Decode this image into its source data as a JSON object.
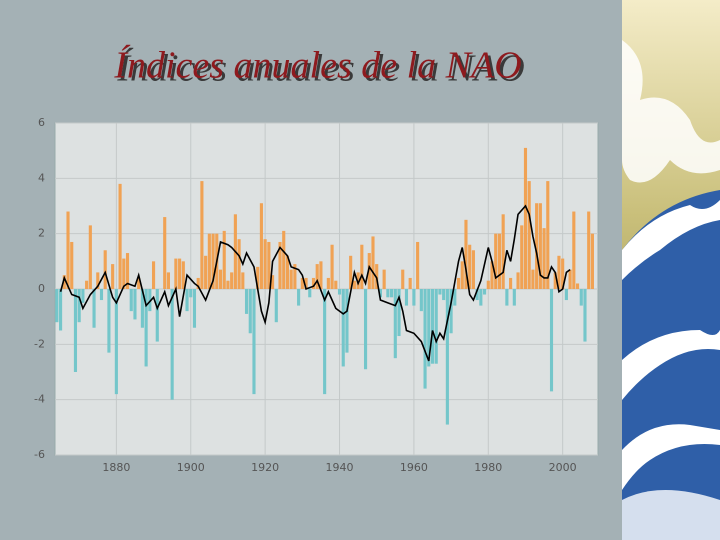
{
  "chart_data": {
    "type": "bar",
    "title": "Índices anuales de la NAO",
    "x": [
      1864,
      1865,
      1866,
      1867,
      1868,
      1869,
      1870,
      1871,
      1872,
      1873,
      1874,
      1875,
      1876,
      1877,
      1878,
      1879,
      1880,
      1881,
      1882,
      1883,
      1884,
      1885,
      1886,
      1887,
      1888,
      1889,
      1890,
      1891,
      1892,
      1893,
      1894,
      1895,
      1896,
      1897,
      1898,
      1899,
      1900,
      1901,
      1902,
      1903,
      1904,
      1905,
      1906,
      1907,
      1908,
      1909,
      1910,
      1911,
      1912,
      1913,
      1914,
      1915,
      1916,
      1917,
      1918,
      1919,
      1920,
      1921,
      1922,
      1923,
      1924,
      1925,
      1926,
      1927,
      1928,
      1929,
      1930,
      1931,
      1932,
      1933,
      1934,
      1935,
      1936,
      1937,
      1938,
      1939,
      1940,
      1941,
      1942,
      1943,
      1944,
      1945,
      1946,
      1947,
      1948,
      1949,
      1950,
      1951,
      1952,
      1953,
      1954,
      1955,
      1956,
      1957,
      1958,
      1959,
      1960,
      1961,
      1962,
      1963,
      1964,
      1965,
      1966,
      1967,
      1968,
      1969,
      1970,
      1971,
      1972,
      1973,
      1974,
      1975,
      1976,
      1977,
      1978,
      1979,
      1980,
      1981,
      1982,
      1983,
      1984,
      1985,
      1986,
      1987,
      1988,
      1989,
      1990,
      1991,
      1992,
      1993,
      1994,
      1995,
      1996,
      1997,
      1998,
      1999,
      2000,
      2001,
      2002,
      2003,
      2004,
      2005,
      2006,
      2007,
      2008
    ],
    "values": [
      -1.2,
      -1.5,
      0.5,
      2.8,
      1.7,
      -3.0,
      -1.2,
      -0.5,
      0.3,
      2.3,
      -1.4,
      0.6,
      -0.4,
      1.4,
      -2.3,
      0.9,
      -3.8,
      3.8,
      1.1,
      1.3,
      -0.8,
      -1.1,
      0.4,
      -1.4,
      -2.8,
      -0.8,
      1.0,
      -1.9,
      0.0,
      2.6,
      0.6,
      -4.0,
      1.1,
      1.1,
      1.0,
      -0.8,
      -0.3,
      -1.4,
      0.4,
      3.9,
      1.2,
      2.0,
      2.0,
      2.0,
      0.7,
      2.1,
      0.3,
      0.6,
      2.7,
      1.8,
      0.6,
      -0.9,
      -1.6,
      -3.8,
      0.8,
      3.1,
      1.8,
      1.7,
      0.5,
      -1.2,
      1.7,
      2.1,
      1.2,
      0.7,
      0.9,
      -0.6,
      0.4,
      0.4,
      -0.3,
      0.4,
      0.9,
      1.0,
      -3.8,
      0.4,
      1.6,
      0.3,
      -0.2,
      -2.8,
      -2.3,
      1.2,
      0.3,
      0.6,
      1.6,
      -2.9,
      1.3,
      1.9,
      0.9,
      -0.3,
      0.7,
      -0.3,
      -0.3,
      -2.5,
      -1.7,
      0.7,
      -0.6,
      0.4,
      -0.6,
      1.7,
      -0.8,
      -3.6,
      -2.8,
      -2.7,
      -2.7,
      -0.2,
      -0.4,
      -4.9,
      -1.6,
      -0.6,
      0.4,
      1.0,
      2.5,
      1.6,
      1.4,
      -0.4,
      -0.6,
      -0.2,
      0.3,
      1.0,
      2.0,
      2.0,
      2.7,
      -0.6,
      0.4,
      -0.6,
      0.6,
      2.3,
      5.1,
      3.9,
      0.7,
      3.1,
      3.1,
      2.2,
      3.9,
      -3.7,
      0.6,
      1.2,
      1.1,
      -0.4,
      0.7,
      2.8,
      0.2,
      -0.6,
      -1.9,
      2.8,
      2.0
    ],
    "color_positive": "#f0a254",
    "color_negative": "#74c6ca",
    "line": {
      "color": "#000000",
      "x": [
        1865,
        1866,
        1868,
        1870,
        1871,
        1873,
        1875,
        1877,
        1879,
        1880,
        1882,
        1883,
        1885,
        1886,
        1888,
        1890,
        1891,
        1893,
        1894,
        1896,
        1897,
        1899,
        1901,
        1902,
        1904,
        1906,
        1908,
        1910,
        1911,
        1913,
        1914,
        1915,
        1917,
        1919,
        1920,
        1921,
        1922,
        1924,
        1926,
        1927,
        1929,
        1930,
        1931,
        1933,
        1934,
        1936,
        1937,
        1939,
        1941,
        1942,
        1944,
        1945,
        1946,
        1947,
        1948,
        1950,
        1951,
        1953,
        1955,
        1956,
        1957,
        1958,
        1960,
        1962,
        1964,
        1965,
        1966,
        1967,
        1968,
        1970,
        1972,
        1973,
        1974,
        1975,
        1976,
        1978,
        1980,
        1981,
        1982,
        1984,
        1985,
        1986,
        1987,
        1988,
        1990,
        1991,
        1992,
        1993,
        1994,
        1995,
        1996,
        1997,
        1998,
        1999,
        2000,
        2001,
        2002
      ],
      "values": [
        -0.1,
        0.4,
        -0.2,
        -0.3,
        -0.7,
        -0.2,
        0.1,
        0.6,
        -0.3,
        -0.5,
        0.1,
        0.2,
        0.1,
        0.5,
        -0.6,
        -0.3,
        -0.7,
        -0.1,
        -0.6,
        0.0,
        -1.0,
        0.5,
        0.2,
        0.1,
        -0.4,
        0.3,
        1.7,
        1.6,
        1.5,
        1.2,
        0.9,
        1.3,
        0.8,
        -0.8,
        -1.2,
        -0.5,
        1.0,
        1.5,
        1.2,
        0.8,
        0.7,
        0.5,
        0.0,
        0.1,
        0.3,
        -0.4,
        -0.1,
        -0.7,
        -0.9,
        -0.8,
        0.6,
        0.2,
        0.5,
        0.2,
        0.8,
        0.4,
        -0.4,
        -0.5,
        -0.6,
        -0.3,
        -0.8,
        -1.5,
        -1.6,
        -1.9,
        -2.6,
        -1.5,
        -1.9,
        -1.6,
        -1.8,
        -0.5,
        1.0,
        1.5,
        0.7,
        -0.2,
        -0.4,
        0.3,
        1.5,
        1.0,
        0.4,
        0.6,
        1.4,
        1.0,
        1.8,
        2.7,
        3.0,
        2.7,
        1.9,
        1.3,
        0.5,
        0.4,
        0.4,
        0.8,
        0.6,
        -0.1,
        0.0,
        0.6,
        0.7
      ]
    },
    "xlim": [
      1863.5,
      2009.5
    ],
    "ylim": [
      -6,
      6
    ],
    "xticks": [
      1880,
      1900,
      1920,
      1940,
      1960,
      1980,
      2000
    ],
    "yticks": [
      -6,
      -4,
      -2,
      0,
      2,
      4,
      6
    ],
    "grid": true
  }
}
